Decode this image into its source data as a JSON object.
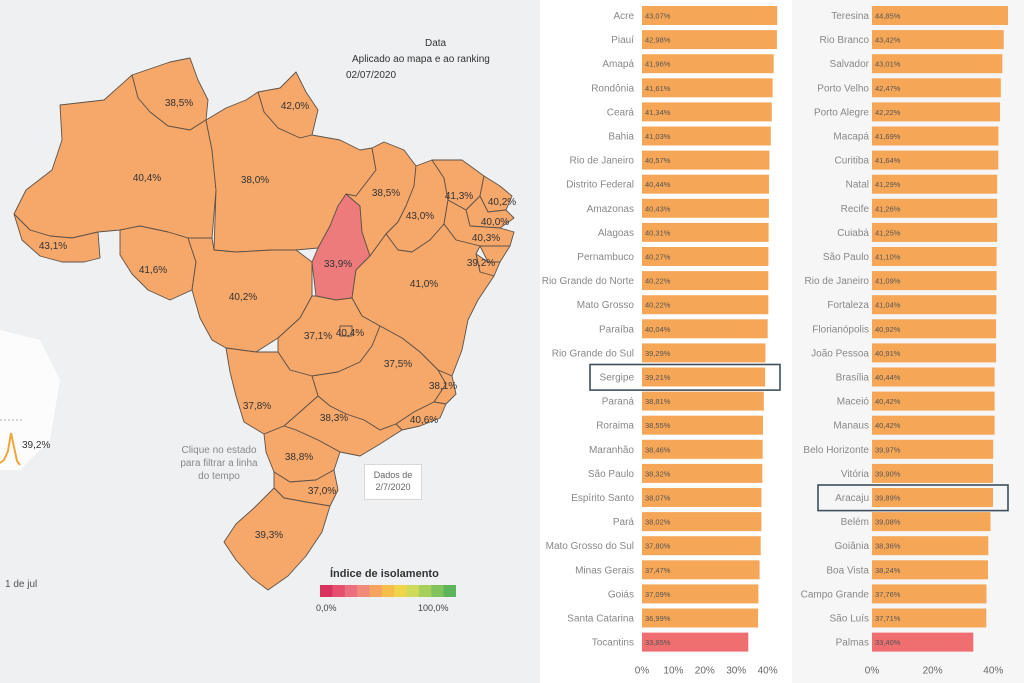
{
  "header": {
    "title": "Data",
    "subtitle": "Aplicado ao mapa e ao ranking",
    "date": "02/07/2020"
  },
  "map": {
    "hint": "Clique no estado para filtrar a linha do tempo",
    "date_note_line1": "Dados de",
    "date_note_line2": "2/7/2020",
    "state_labels": {
      "roraima": "38,5%",
      "amapa": "42,0%",
      "amazonas": "40,4%",
      "para": "38,0%",
      "acre": "43,1%",
      "rondonia": "41,6%",
      "mato_grosso": "40,2%",
      "tocantins": "33,9%",
      "maranhao": "38,5%",
      "piaui": "43,0%",
      "ceara": "41,3%",
      "rio_grande_do_norte": "40,2%",
      "paraiba": "40,0%",
      "pernambuco": "40,3%",
      "alagoas_sergipe": "39,2%",
      "bahia": "41,0%",
      "goias": "37,1%",
      "distrito_federal": "40,4%",
      "minas_gerais": "37,5%",
      "espirito_santo": "38,1%",
      "rio_de_janeiro": "40,6%",
      "mato_grosso_do_sul": "37,8%",
      "sao_paulo": "38,3%",
      "parana": "38,8%",
      "santa_catarina": "37,0%",
      "rio_grande_do_sul": "39,3%"
    }
  },
  "timeline": {
    "last_value": "39,2%",
    "tick_label": "1 de jul"
  },
  "legend": {
    "title": "Índice de isolamento",
    "min_label": "0,0%",
    "max_label": "100,0%",
    "colors": [
      "#d7335c",
      "#e4506d",
      "#ec6f7e",
      "#f08a7a",
      "#f5a35f",
      "#f7bd4a",
      "#efd54a",
      "#cfd95a",
      "#a8cf5c",
      "#82c25c",
      "#5eb45a"
    ]
  },
  "chart_data": [
    {
      "type": "bar",
      "title": "",
      "orientation": "horizontal",
      "categories": [
        "Acre",
        "Piauí",
        "Amapá",
        "Rondônia",
        "Ceará",
        "Bahia",
        "Rio de Janeiro",
        "Distrito Federal",
        "Amazonas",
        "Alagoas",
        "Pernambuco",
        "Rio Grande do Norte",
        "Mato Grosso",
        "Paraíba",
        "Rio Grande do Sul",
        "Sergipe",
        "Paraná",
        "Roraima",
        "Maranhão",
        "São Paulo",
        "Espírito Santo",
        "Pará",
        "Mato Grosso do Sul",
        "Minas Gerais",
        "Goiás",
        "Santa Catarina",
        "Tocantins"
      ],
      "values": [
        43.07,
        42.98,
        41.96,
        41.61,
        41.34,
        41.03,
        40.57,
        40.44,
        40.43,
        40.31,
        40.27,
        40.22,
        40.22,
        40.04,
        39.29,
        39.21,
        38.81,
        38.55,
        38.46,
        38.32,
        38.07,
        38.02,
        37.8,
        37.47,
        37.09,
        36.99,
        33.85
      ],
      "value_labels": [
        "43,07%",
        "42,98%",
        "41,96%",
        "41,61%",
        "41,34%",
        "41,03%",
        "40,57%",
        "40,44%",
        "40,43%",
        "40,31%",
        "40,27%",
        "40,22%",
        "40,22%",
        "40,04%",
        "39,29%",
        "39,21%",
        "38,81%",
        "38,55%",
        "38,46%",
        "38,32%",
        "38,07%",
        "38,02%",
        "37,80%",
        "37,47%",
        "37,09%",
        "36,99%",
        "33,85%"
      ],
      "highlighted": "Sergipe",
      "xlim": [
        0,
        43
      ],
      "xticks": [
        0,
        10,
        20,
        30,
        40
      ],
      "xtick_labels": [
        "0%",
        "10%",
        "20%",
        "30%",
        "40%"
      ]
    },
    {
      "type": "bar",
      "title": "",
      "orientation": "horizontal",
      "categories": [
        "Teresina",
        "Rio Branco",
        "Salvador",
        "Porto Velho",
        "Porto Alegre",
        "Macapá",
        "Curitiba",
        "Natal",
        "Recife",
        "Cuiabá",
        "São Paulo",
        "Rio de Janeiro",
        "Fortaleza",
        "Florianópolis",
        "João Pessoa",
        "Brasília",
        "Maceió",
        "Manaus",
        "Belo Horizonte",
        "Vitória",
        "Aracaju",
        "Belém",
        "Goiânia",
        "Boa Vista",
        "Campo Grande",
        "São Luís",
        "Palmas"
      ],
      "values": [
        44.85,
        43.42,
        43.01,
        42.47,
        42.22,
        41.69,
        41.64,
        41.29,
        41.26,
        41.25,
        41.1,
        41.09,
        41.04,
        40.92,
        40.91,
        40.44,
        40.42,
        40.42,
        39.97,
        39.9,
        39.89,
        39.08,
        38.36,
        38.24,
        37.76,
        37.71,
        33.4
      ],
      "value_labels": [
        "44,85%",
        "43,42%",
        "43,01%",
        "42,47%",
        "42,22%",
        "41,69%",
        "41,64%",
        "41,29%",
        "41,26%",
        "41,25%",
        "41,10%",
        "41,09%",
        "41,04%",
        "40,92%",
        "40,91%",
        "40,44%",
        "40,42%",
        "40,42%",
        "39,97%",
        "39,90%",
        "39,89%",
        "39,08%",
        "38,36%",
        "38,24%",
        "37,76%",
        "37,71%",
        "33,40%"
      ],
      "highlighted": "Aracaju",
      "xlim": [
        0,
        44.85
      ],
      "xticks": [
        0,
        20,
        40
      ],
      "xtick_labels": [
        "0%",
        "20%",
        "40%"
      ]
    }
  ]
}
